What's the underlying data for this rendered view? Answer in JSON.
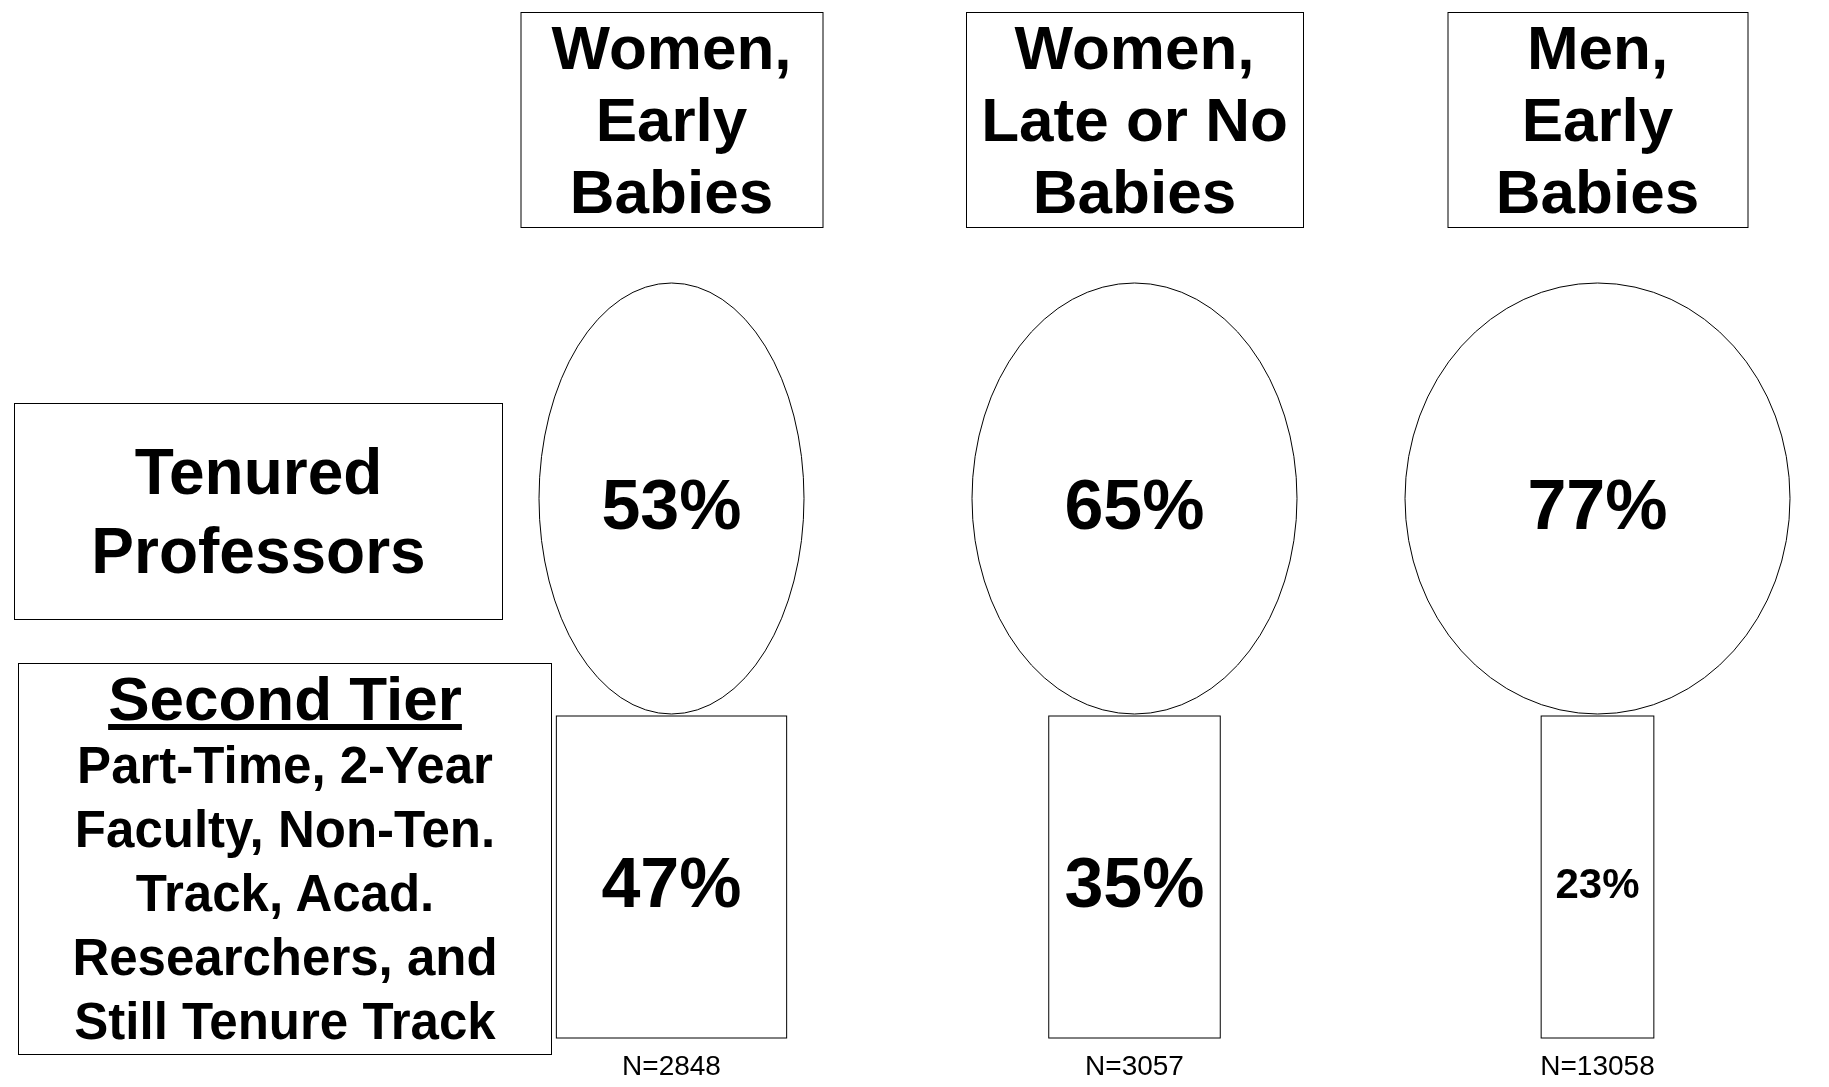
{
  "chart_data": {
    "type": "other",
    "categories": [
      "Women, Early Babies",
      "Women, Late or No Babies",
      "Men, Early Babies"
    ],
    "series": [
      {
        "name": "Tenured Professors",
        "marker": "circle",
        "color": "#ffffff",
        "values": [
          53,
          65,
          77
        ],
        "value_labels": [
          "53%",
          "65%",
          "77%"
        ]
      },
      {
        "name": "Second Tier",
        "marker": "square",
        "color": "#ffffff",
        "values": [
          47,
          35,
          23
        ],
        "value_labels": [
          "47%",
          "35%",
          "23%"
        ]
      }
    ],
    "annotations": [
      "Part-Time, 2-Year Faculty, Non-Ten. Track, Acad. Researchers, and Still Tenure Track",
      {
        "text": "N=2848",
        "x": "Women, Early Babies"
      },
      {
        "text": "N=3057",
        "x": "Women, Late or No Babies"
      },
      {
        "text": "N=13058",
        "x": "Men, Early Babies"
      }
    ]
  }
}
